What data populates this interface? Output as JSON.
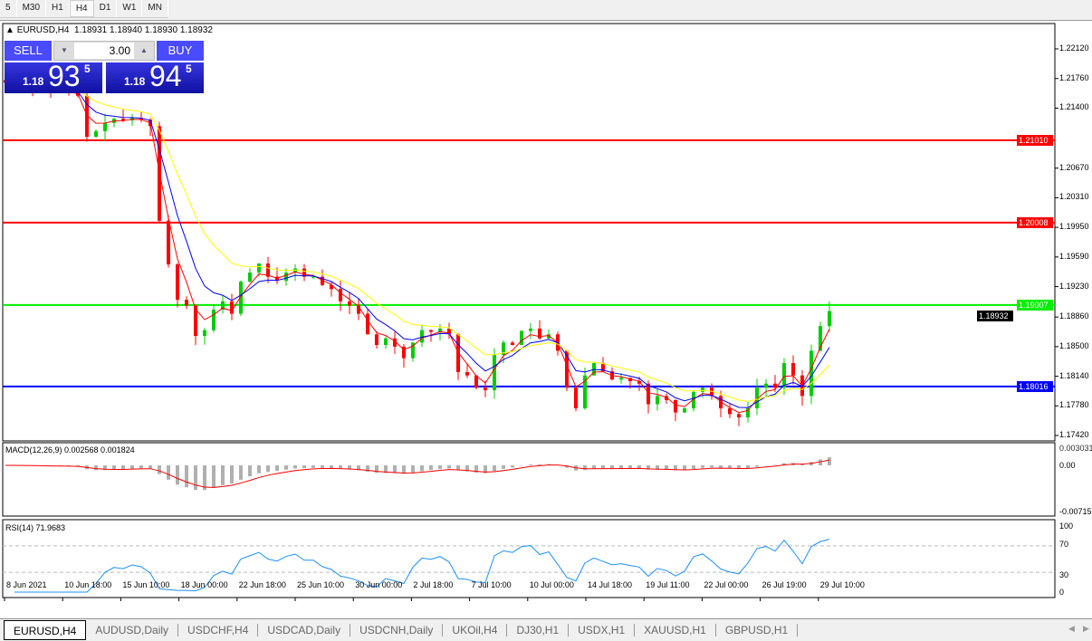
{
  "timeframes": [
    "5",
    "M30",
    "H1",
    "H4",
    "D1",
    "W1",
    "MN"
  ],
  "selected_timeframe": "H4",
  "header": {
    "symbol": "EURUSD,H4",
    "ohlc": "1.18931 1.18940 1.18930 1.18932"
  },
  "trade_panel": {
    "sell_label": "SELL",
    "buy_label": "BUY",
    "lot": "3.00",
    "sell_prefix": "1.18",
    "sell_big": "93",
    "sell_sup": "5",
    "buy_prefix": "1.18",
    "buy_big": "94",
    "buy_sup": "5"
  },
  "chart_data": {
    "type": "candlestick",
    "price_axis": [
      "1.22120",
      "1.21760",
      "1.21400",
      "1.20670",
      "1.20310",
      "1.19950",
      "1.19590",
      "1.19230",
      "1.18860",
      "1.18500",
      "1.18140",
      "1.17780",
      "1.17420"
    ],
    "ylim": [
      1.1742,
      1.2212
    ],
    "time_axis": [
      "8 Jun 2021",
      "10 Jun 18:00",
      "15 Jun 10:00",
      "18 Jun 00:00",
      "22 Jun 18:00",
      "25 Jun 10:00",
      "30 Jun 00:00",
      "2 Jul 18:00",
      "7 Jul 10:00",
      "10 Jul 00:00",
      "14 Jul 18:00",
      "19 Jul 11:00",
      "22 Jul 00:00",
      "26 Jul 19:00",
      "29 Jul 10:00"
    ],
    "closes": [
      1.2171,
      1.217,
      1.2168,
      1.2165,
      1.2163,
      1.2162,
      1.216,
      1.2158,
      1.2155,
      1.2105,
      1.2112,
      1.2122,
      1.2127,
      1.2125,
      1.2128,
      1.2126,
      1.2118,
      1.2003,
      1.195,
      1.1907,
      1.19,
      1.1863,
      1.187,
      1.1895,
      1.1905,
      1.189,
      1.1929,
      1.194,
      1.1951,
      1.1935,
      1.193,
      1.194,
      1.1945,
      1.1935,
      1.1935,
      1.1925,
      1.192,
      1.1905,
      1.19,
      1.189,
      1.1865,
      1.1852,
      1.186,
      1.185,
      1.1836,
      1.1855,
      1.187,
      1.1868,
      1.1872,
      1.1865,
      1.1819,
      1.1815,
      1.18,
      1.1797,
      1.184,
      1.1855,
      1.1852,
      1.1869,
      1.1872,
      1.186,
      1.1865,
      1.1845,
      1.18,
      1.1775,
      1.1815,
      1.183,
      1.182,
      1.181,
      1.1812,
      1.1808,
      1.1805,
      1.178,
      1.179,
      1.1785,
      1.177,
      1.1775,
      1.1795,
      1.18,
      1.179,
      1.1775,
      1.1768,
      1.1764,
      1.1775,
      1.18,
      1.1805,
      1.18,
      1.183,
      1.1815,
      1.179,
      1.1845,
      1.1875,
      1.18932
    ],
    "levels": [
      {
        "price": 1.2101,
        "label": "1.21010",
        "color": "#ff0000"
      },
      {
        "price": 1.20008,
        "label": "1.20008",
        "color": "#ff0000"
      },
      {
        "price": 1.19007,
        "label": "1.19007",
        "color": "#00ee00"
      },
      {
        "price": 1.18016,
        "label": "1.18016",
        "color": "#0000ff"
      }
    ],
    "current_price": "1.18932",
    "colors": {
      "bull": "#00cc00",
      "bear": "#ff0000",
      "ma_fast": "#ff0000",
      "ma_mid": "#0000ff",
      "ma_slow": "#ffff00"
    }
  },
  "macd": {
    "label": "MACD(12,26,9) 0.002568 0.001824",
    "axis": [
      "0.003031",
      "0.00",
      "-0.00715"
    ]
  },
  "rsi": {
    "label": "RSI(14) 71.9683",
    "axis": [
      "100",
      "70",
      "30",
      "0"
    ]
  },
  "tabs": [
    "EURUSD,H4",
    "AUDUSD,Daily",
    "USDCHF,H4",
    "USDCAD,Daily",
    "USDCNH,Daily",
    "UKOil,H4",
    "DJ30,H1",
    "USDX,H1",
    "XAUUSD,H1",
    "GBPUSD,H1"
  ]
}
